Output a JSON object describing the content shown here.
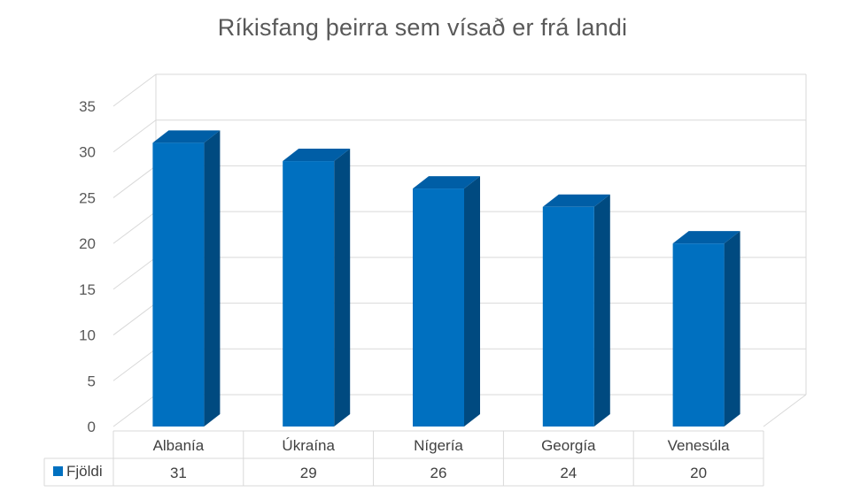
{
  "chart_data": {
    "type": "bar",
    "title": "Ríkisfang þeirra sem vísað er frá landi",
    "categories": [
      "Albanía",
      "Úkraína",
      "Nígería",
      "Georgía",
      "Venesúla"
    ],
    "series": [
      {
        "name": "Fjöldi",
        "values": [
          31,
          29,
          26,
          24,
          20
        ]
      }
    ],
    "ylim": [
      0,
      35
    ],
    "yticks": [
      "0",
      "5",
      "10",
      "15",
      "20",
      "25",
      "30",
      "35"
    ],
    "grid": true,
    "style": "3d-column with data table",
    "colors": {
      "front": "#0070c0",
      "side": "#004a80",
      "top": "#005ea6"
    }
  }
}
